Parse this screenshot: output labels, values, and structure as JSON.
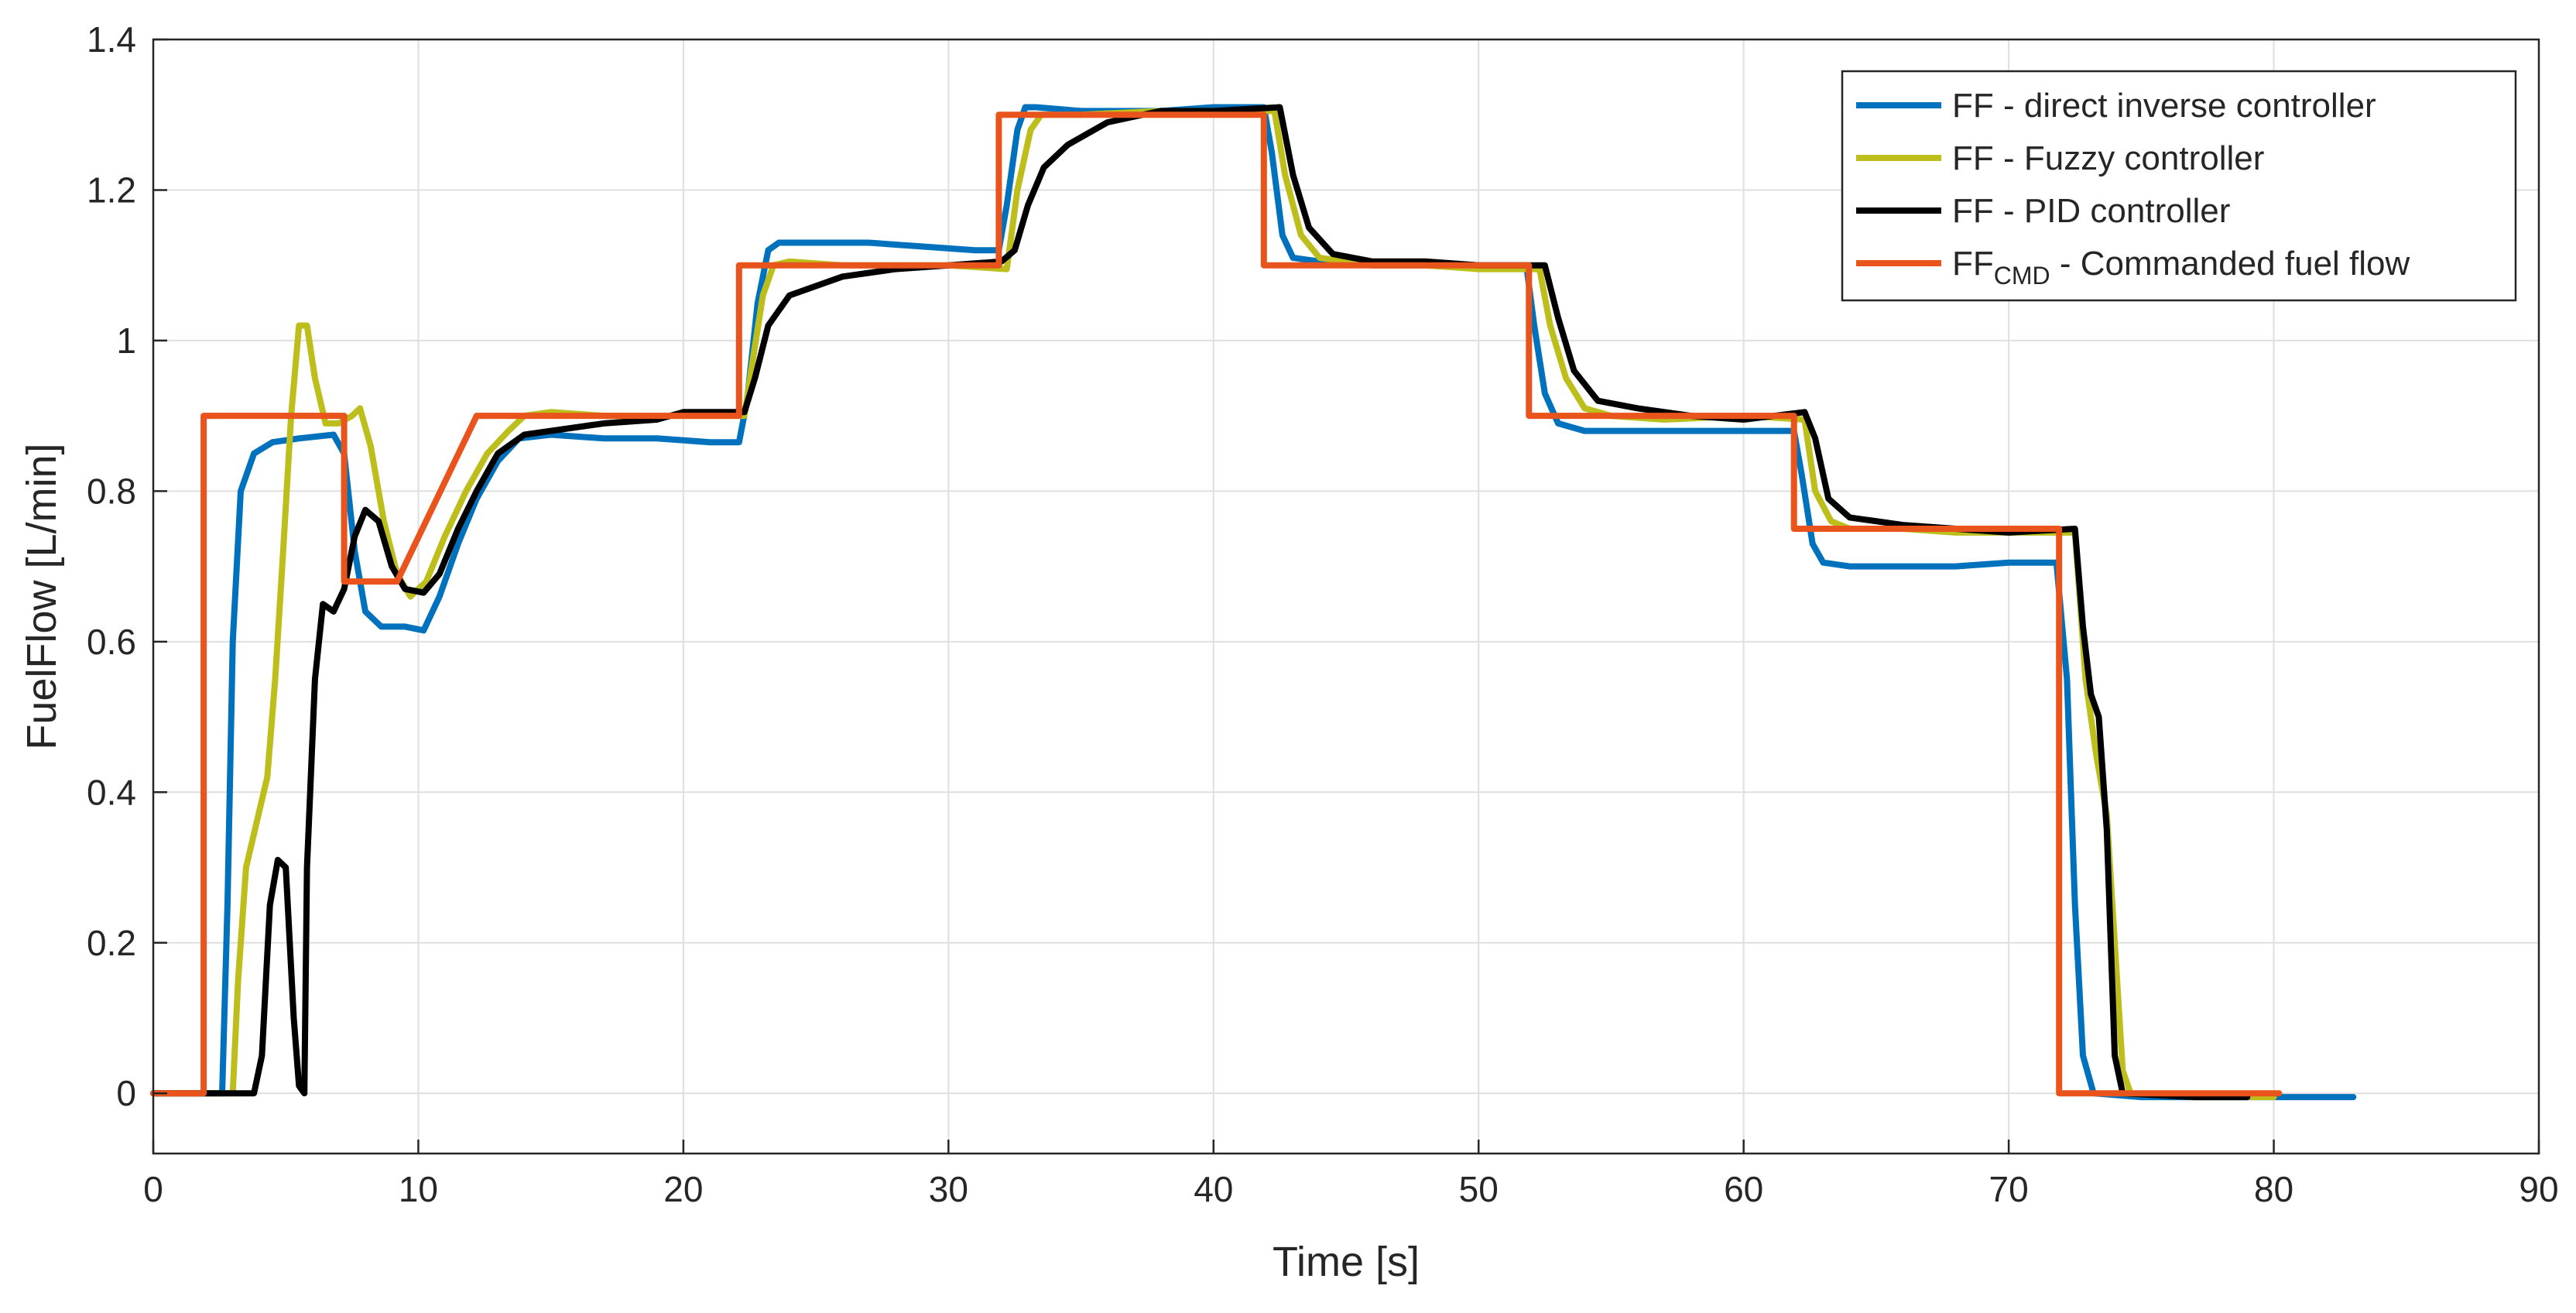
{
  "chart_data": {
    "type": "line",
    "title": "",
    "xlabel": "Time [s]",
    "ylabel": "FuelFlow [L/min]",
    "xlim": [
      0,
      90
    ],
    "ylim": [
      -0.08,
      1.4
    ],
    "xticks": [
      0,
      10,
      20,
      30,
      40,
      50,
      60,
      70,
      80,
      90
    ],
    "yticks": [
      0,
      0.2,
      0.4,
      0.6,
      0.8,
      1,
      1.2,
      1.4
    ],
    "xtick_labels": [
      "0",
      "10",
      "20",
      "30",
      "40",
      "50",
      "60",
      "70",
      "80",
      "90"
    ],
    "ytick_labels": [
      "0",
      "0.2",
      "0.4",
      "0.6",
      "0.8",
      "1",
      "1.2",
      "1.4"
    ],
    "grid": true,
    "legend_position": "top-right",
    "series": [
      {
        "name": "FF - direct inverse controller",
        "legend_main": "FF - direct inverse controller",
        "legend_sub": "",
        "legend_rest": "",
        "color": "#0072BD",
        "points": [
          [
            0,
            0
          ],
          [
            2.6,
            0
          ],
          [
            2.8,
            0.25
          ],
          [
            3.0,
            0.6
          ],
          [
            3.3,
            0.8
          ],
          [
            3.8,
            0.85
          ],
          [
            4.5,
            0.865
          ],
          [
            5.5,
            0.87
          ],
          [
            6.8,
            0.875
          ],
          [
            7.2,
            0.85
          ],
          [
            7.6,
            0.72
          ],
          [
            8.0,
            0.64
          ],
          [
            8.6,
            0.62
          ],
          [
            9.5,
            0.62
          ],
          [
            10.2,
            0.615
          ],
          [
            10.8,
            0.66
          ],
          [
            11.5,
            0.73
          ],
          [
            12.2,
            0.79
          ],
          [
            13.0,
            0.84
          ],
          [
            13.8,
            0.87
          ],
          [
            15,
            0.875
          ],
          [
            17,
            0.87
          ],
          [
            19,
            0.87
          ],
          [
            21,
            0.865
          ],
          [
            22.1,
            0.865
          ],
          [
            22.4,
            0.92
          ],
          [
            22.8,
            1.05
          ],
          [
            23.2,
            1.12
          ],
          [
            23.6,
            1.13
          ],
          [
            25,
            1.13
          ],
          [
            27,
            1.13
          ],
          [
            29,
            1.125
          ],
          [
            31,
            1.12
          ],
          [
            31.9,
            1.12
          ],
          [
            32.2,
            1.18
          ],
          [
            32.6,
            1.28
          ],
          [
            32.9,
            1.31
          ],
          [
            33.3,
            1.31
          ],
          [
            35,
            1.305
          ],
          [
            38,
            1.305
          ],
          [
            40,
            1.31
          ],
          [
            41.9,
            1.31
          ],
          [
            42.2,
            1.25
          ],
          [
            42.6,
            1.14
          ],
          [
            43.0,
            1.11
          ],
          [
            44,
            1.105
          ],
          [
            46,
            1.1
          ],
          [
            49,
            1.1
          ],
          [
            51.8,
            1.1
          ],
          [
            52.1,
            1.02
          ],
          [
            52.5,
            0.93
          ],
          [
            53.0,
            0.89
          ],
          [
            54,
            0.88
          ],
          [
            56,
            0.88
          ],
          [
            58,
            0.88
          ],
          [
            60,
            0.88
          ],
          [
            61.9,
            0.88
          ],
          [
            62.2,
            0.82
          ],
          [
            62.6,
            0.73
          ],
          [
            63.0,
            0.705
          ],
          [
            64,
            0.7
          ],
          [
            66,
            0.7
          ],
          [
            68,
            0.7
          ],
          [
            70,
            0.705
          ],
          [
            71.8,
            0.705
          ],
          [
            72.2,
            0.55
          ],
          [
            72.5,
            0.25
          ],
          [
            72.8,
            0.05
          ],
          [
            73.2,
            0
          ],
          [
            75,
            -0.005
          ],
          [
            78,
            -0.005
          ],
          [
            80,
            -0.005
          ],
          [
            83,
            -0.005
          ]
        ]
      },
      {
        "name": "FF - Fuzzy controller",
        "legend_main": "FF - Fuzzy controller",
        "legend_sub": "",
        "legend_rest": "",
        "color": "#BDBE1C",
        "points": [
          [
            0,
            0
          ],
          [
            3.0,
            0
          ],
          [
            3.2,
            0.15
          ],
          [
            3.5,
            0.3
          ],
          [
            3.9,
            0.36
          ],
          [
            4.3,
            0.42
          ],
          [
            4.6,
            0.55
          ],
          [
            4.9,
            0.72
          ],
          [
            5.2,
            0.9
          ],
          [
            5.5,
            1.02
          ],
          [
            5.8,
            1.02
          ],
          [
            6.1,
            0.95
          ],
          [
            6.5,
            0.89
          ],
          [
            7.0,
            0.89
          ],
          [
            7.5,
            0.9
          ],
          [
            7.8,
            0.91
          ],
          [
            8.2,
            0.86
          ],
          [
            8.7,
            0.76
          ],
          [
            9.2,
            0.69
          ],
          [
            9.7,
            0.66
          ],
          [
            10.3,
            0.68
          ],
          [
            11.0,
            0.74
          ],
          [
            11.8,
            0.8
          ],
          [
            12.6,
            0.85
          ],
          [
            13.4,
            0.88
          ],
          [
            14,
            0.9
          ],
          [
            15,
            0.905
          ],
          [
            17,
            0.9
          ],
          [
            19,
            0.9
          ],
          [
            21,
            0.9
          ],
          [
            22.3,
            0.9
          ],
          [
            22.6,
            0.97
          ],
          [
            23.0,
            1.06
          ],
          [
            23.4,
            1.1
          ],
          [
            24,
            1.105
          ],
          [
            26,
            1.1
          ],
          [
            28,
            1.1
          ],
          [
            30,
            1.1
          ],
          [
            32.2,
            1.095
          ],
          [
            32.6,
            1.2
          ],
          [
            33.1,
            1.28
          ],
          [
            33.5,
            1.3
          ],
          [
            35,
            1.3
          ],
          [
            38,
            1.305
          ],
          [
            40,
            1.305
          ],
          [
            42.3,
            1.305
          ],
          [
            42.7,
            1.22
          ],
          [
            43.3,
            1.14
          ],
          [
            44,
            1.11
          ],
          [
            46,
            1.1
          ],
          [
            48,
            1.1
          ],
          [
            50,
            1.095
          ],
          [
            52.3,
            1.095
          ],
          [
            52.7,
            1.02
          ],
          [
            53.3,
            0.95
          ],
          [
            54,
            0.91
          ],
          [
            55,
            0.9
          ],
          [
            57,
            0.895
          ],
          [
            60,
            0.9
          ],
          [
            62.3,
            0.895
          ],
          [
            62.7,
            0.8
          ],
          [
            63.3,
            0.76
          ],
          [
            64,
            0.75
          ],
          [
            66,
            0.75
          ],
          [
            68,
            0.745
          ],
          [
            70,
            0.745
          ],
          [
            72.5,
            0.745
          ],
          [
            72.9,
            0.55
          ],
          [
            73.3,
            0.45
          ],
          [
            73.7,
            0.37
          ],
          [
            74.0,
            0.2
          ],
          [
            74.3,
            0.03
          ],
          [
            74.6,
            0
          ],
          [
            77,
            -0.005
          ],
          [
            80,
            -0.005
          ]
        ]
      },
      {
        "name": "FF - PID controller",
        "legend_main": "FF - PID controller",
        "legend_sub": "",
        "legend_rest": "",
        "color": "#000000",
        "points": [
          [
            0,
            0
          ],
          [
            3.8,
            0
          ],
          [
            4.1,
            0.05
          ],
          [
            4.4,
            0.25
          ],
          [
            4.7,
            0.31
          ],
          [
            5.0,
            0.3
          ],
          [
            5.3,
            0.1
          ],
          [
            5.5,
            0.01
          ],
          [
            5.7,
            0
          ],
          [
            5.8,
            0.3
          ],
          [
            6.1,
            0.55
          ],
          [
            6.4,
            0.65
          ],
          [
            6.8,
            0.64
          ],
          [
            7.2,
            0.67
          ],
          [
            7.6,
            0.74
          ],
          [
            8.0,
            0.775
          ],
          [
            8.5,
            0.76
          ],
          [
            9.0,
            0.7
          ],
          [
            9.5,
            0.67
          ],
          [
            10.2,
            0.665
          ],
          [
            10.8,
            0.69
          ],
          [
            11.5,
            0.75
          ],
          [
            12.2,
            0.8
          ],
          [
            13,
            0.85
          ],
          [
            14,
            0.875
          ],
          [
            15,
            0.88
          ],
          [
            17,
            0.89
          ],
          [
            19,
            0.895
          ],
          [
            20,
            0.905
          ],
          [
            22.3,
            0.905
          ],
          [
            22.7,
            0.95
          ],
          [
            23.2,
            1.02
          ],
          [
            24,
            1.06
          ],
          [
            26,
            1.085
          ],
          [
            28,
            1.095
          ],
          [
            30,
            1.1
          ],
          [
            32,
            1.105
          ],
          [
            32.5,
            1.12
          ],
          [
            33,
            1.18
          ],
          [
            33.6,
            1.23
          ],
          [
            34.5,
            1.26
          ],
          [
            36,
            1.29
          ],
          [
            38,
            1.305
          ],
          [
            40,
            1.305
          ],
          [
            42.5,
            1.31
          ],
          [
            43,
            1.22
          ],
          [
            43.6,
            1.15
          ],
          [
            44.5,
            1.115
          ],
          [
            46,
            1.105
          ],
          [
            48,
            1.105
          ],
          [
            50,
            1.1
          ],
          [
            52.5,
            1.1
          ],
          [
            53,
            1.03
          ],
          [
            53.6,
            0.96
          ],
          [
            54.5,
            0.92
          ],
          [
            56,
            0.91
          ],
          [
            58,
            0.9
          ],
          [
            60,
            0.895
          ],
          [
            62.3,
            0.905
          ],
          [
            62.7,
            0.87
          ],
          [
            63.2,
            0.79
          ],
          [
            64,
            0.765
          ],
          [
            66,
            0.755
          ],
          [
            68,
            0.75
          ],
          [
            70,
            0.745
          ],
          [
            72.5,
            0.75
          ],
          [
            72.8,
            0.62
          ],
          [
            73.1,
            0.53
          ],
          [
            73.4,
            0.5
          ],
          [
            73.7,
            0.35
          ],
          [
            74.0,
            0.05
          ],
          [
            74.3,
            0
          ],
          [
            77,
            -0.005
          ],
          [
            79,
            -0.005
          ]
        ]
      },
      {
        "name": "FFCMD - Commanded fuel flow",
        "legend_main": "FF",
        "legend_sub": "CMD",
        "legend_rest": " - Commanded fuel flow",
        "color": "#E8541B",
        "points": [
          [
            0,
            0
          ],
          [
            1.9,
            0
          ],
          [
            1.9,
            0.9
          ],
          [
            7.2,
            0.9
          ],
          [
            7.2,
            0.68
          ],
          [
            9.2,
            0.68
          ],
          [
            12.2,
            0.9
          ],
          [
            22.1,
            0.9
          ],
          [
            22.1,
            1.1
          ],
          [
            31.9,
            1.1
          ],
          [
            31.9,
            1.3
          ],
          [
            41.9,
            1.3
          ],
          [
            41.9,
            1.1
          ],
          [
            51.9,
            1.1
          ],
          [
            51.9,
            0.9
          ],
          [
            61.9,
            0.9
          ],
          [
            61.9,
            0.75
          ],
          [
            71.9,
            0.75
          ],
          [
            71.9,
            0
          ],
          [
            80.2,
            0
          ]
        ]
      }
    ]
  }
}
